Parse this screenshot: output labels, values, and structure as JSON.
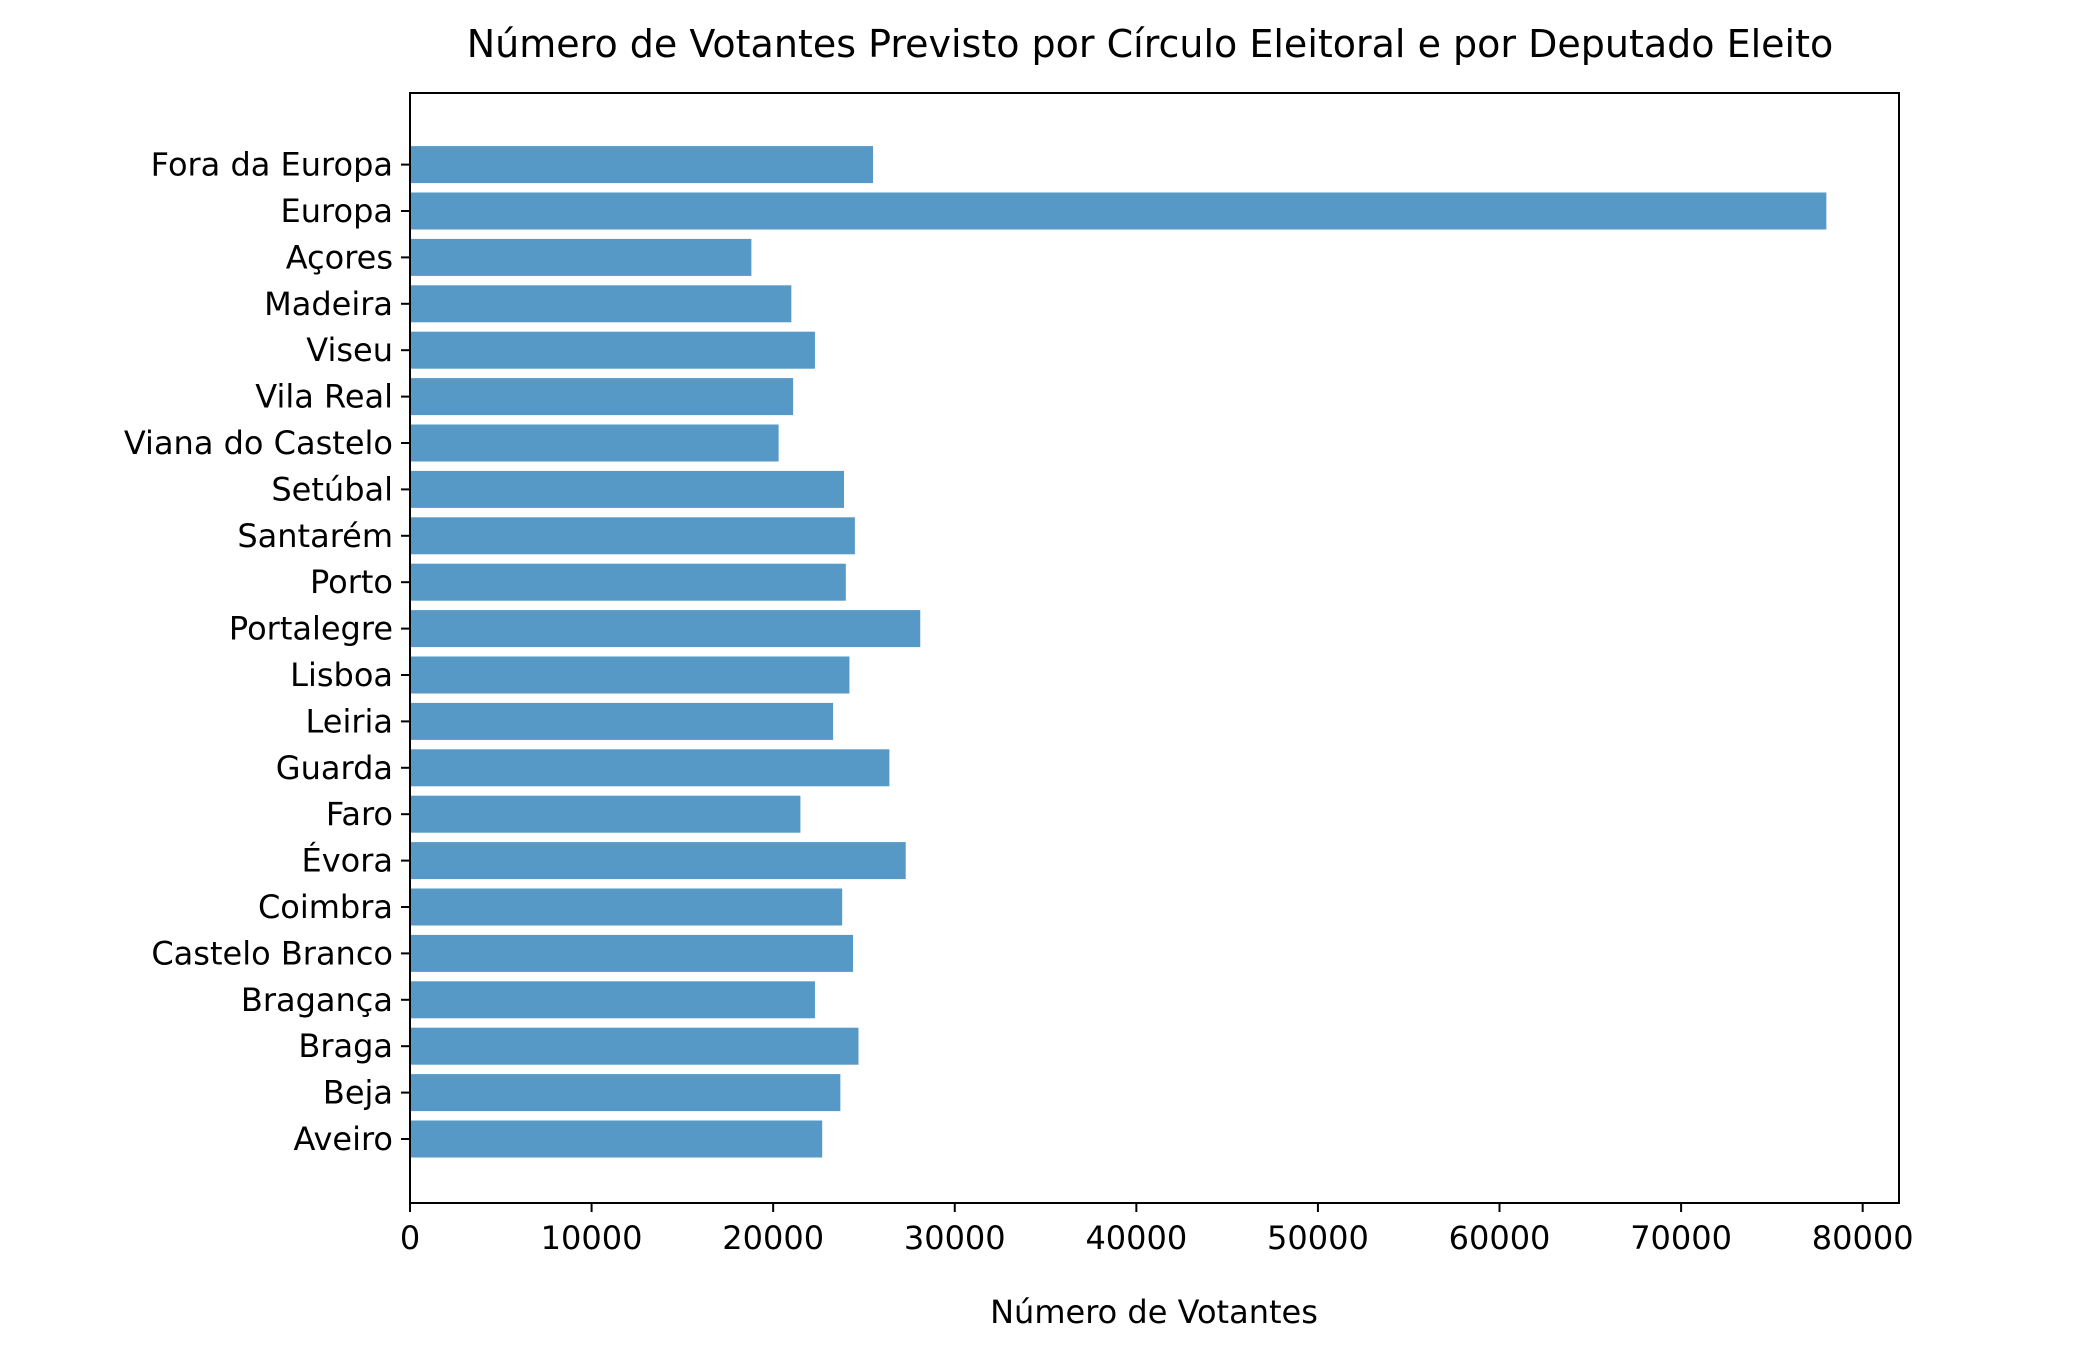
{
  "chart_data": {
    "type": "bar",
    "orientation": "horizontal",
    "title": "Número de Votantes Previsto por Círculo Eleitoral e por Deputado Eleito",
    "xlabel": "Número de Votantes",
    "ylabel": "",
    "categories": [
      "Aveiro",
      "Beja",
      "Braga",
      "Bragança",
      "Castelo Branco",
      "Coimbra",
      "Évora",
      "Faro",
      "Guarda",
      "Leiria",
      "Lisboa",
      "Portalegre",
      "Porto",
      "Santarém",
      "Setúbal",
      "Viana do Castelo",
      "Vila Real",
      "Viseu",
      "Madeira",
      "Açores",
      "Europa",
      "Fora da Europa"
    ],
    "values": [
      22700,
      23700,
      24700,
      22300,
      24400,
      23800,
      27300,
      21500,
      26400,
      23300,
      24200,
      28100,
      24000,
      24500,
      23900,
      20300,
      21100,
      22300,
      21000,
      18800,
      78000,
      25500
    ],
    "xlim": [
      0,
      82000
    ],
    "xticks": [
      0,
      10000,
      20000,
      30000,
      40000,
      50000,
      60000,
      70000,
      80000
    ],
    "xtick_labels": [
      "0",
      "10000",
      "20000",
      "30000",
      "40000",
      "50000",
      "60000",
      "70000",
      "80000"
    ],
    "grid": false,
    "bar_color": "#5698c6",
    "axis_color": "#000000"
  }
}
